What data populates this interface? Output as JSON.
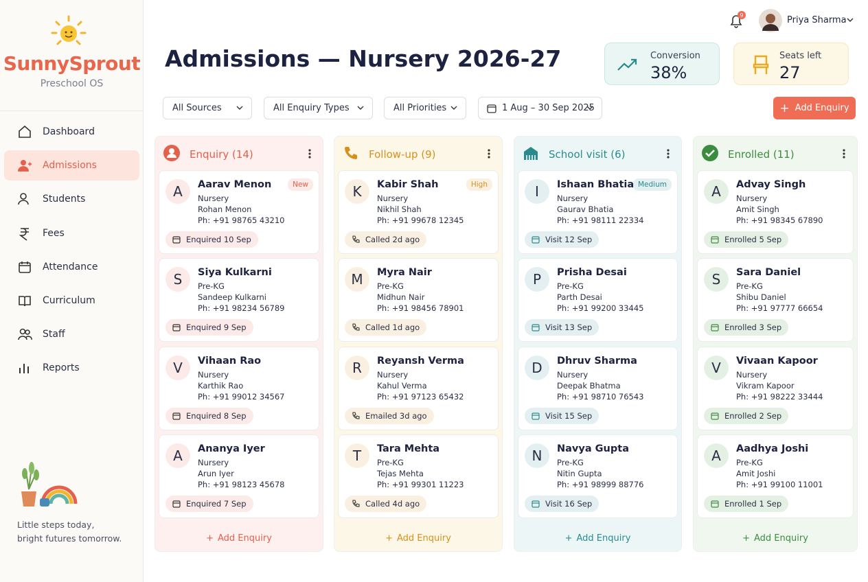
{
  "brand": {
    "name": "SunnySprout",
    "tagline": "Preschool OS"
  },
  "nav": [
    {
      "label": "Dashboard"
    },
    {
      "label": "Admissions",
      "active": true
    },
    {
      "label": "Students"
    },
    {
      "label": "Fees"
    },
    {
      "label": "Attendance"
    },
    {
      "label": "Curriculum"
    },
    {
      "label": "Staff"
    },
    {
      "label": "Reports"
    }
  ],
  "footer_note": [
    "Little steps today,",
    "bright futures tomorrow."
  ],
  "user": {
    "name": "Priya Sharma",
    "notifications": 9
  },
  "page_title": "Admissions — Nursery 2026-27",
  "stats": [
    {
      "label": "Conversion",
      "value": "38%"
    },
    {
      "label": "Seats left",
      "value": "27"
    }
  ],
  "filters": [
    "All Sources",
    "All Enquiry Types",
    "All Priorities",
    "1 Aug – 30 Sep 2025"
  ],
  "add_button": "Add Enquiry",
  "columns": [
    {
      "title": "Enquiry (14)",
      "color": "#e4604a",
      "bg": "#fdf0ee",
      "add": "Add Enquiry",
      "cards": [
        {
          "initial": "A",
          "name": "Aarav Menon",
          "badge": "New",
          "grade": "Nursery",
          "parent": "Rohan Menon",
          "phone": "Ph: +91 98765 43210",
          "status": "Enquired 10 Sep"
        },
        {
          "initial": "S",
          "name": "Siya Kulkarni",
          "grade": "Pre-KG",
          "parent": "Sandeep Kulkarni",
          "phone": "Ph: +91 98234 56789",
          "status": "Enquired 9 Sep"
        },
        {
          "initial": "V",
          "name": "Vihaan Rao",
          "grade": "Nursery",
          "parent": "Karthik Rao",
          "phone": "Ph: +91 99012 34567",
          "status": "Enquired 8 Sep"
        },
        {
          "initial": "A",
          "name": "Ananya Iyer",
          "grade": "Nursery",
          "parent": "Arun Iyer",
          "phone": "Ph: +91 98123 45678",
          "status": "Enquired 7 Sep"
        }
      ]
    },
    {
      "title": "Follow-up (9)",
      "color": "#d8901c",
      "bg": "#fdf7e8",
      "add": "Add Enquiry",
      "cards": [
        {
          "initial": "K",
          "name": "Kabir Shah",
          "badge": "High",
          "grade": "Nursery",
          "parent": "Nikhil Shah",
          "phone": "Ph: +91 99678 12345",
          "status": "Called 2d ago"
        },
        {
          "initial": "M",
          "name": "Myra Nair",
          "grade": "Pre-KG",
          "parent": "Midhun Nair",
          "phone": "Ph: +91 98456 78901",
          "status": "Called 1d ago"
        },
        {
          "initial": "R",
          "name": "Reyansh Verma",
          "grade": "Nursery",
          "parent": "Kahul Verma",
          "phone": "Ph: +91 97123 65432",
          "status": "Emailed 3d ago"
        },
        {
          "initial": "T",
          "name": "Tara Mehta",
          "grade": "Pre-KG",
          "parent": "Tejas Mehta",
          "phone": "Ph: +91 99301 11223",
          "status": "Called 4d ago"
        }
      ]
    },
    {
      "title": "School visit (6)",
      "color": "#2b8a8c",
      "bg": "#ecf6f6",
      "add": "Add Enquiry",
      "cards": [
        {
          "initial": "I",
          "name": "Ishaan Bhatia",
          "badge": "Medium",
          "grade": "Nursery",
          "parent": "Gaurav Bhatia",
          "phone": "Ph: +91 98111 22334",
          "status": "Visit 12 Sep"
        },
        {
          "initial": "P",
          "name": "Prisha Desai",
          "grade": "Pre-KG",
          "parent": "Parth Desai",
          "phone": "Ph: +91 99200 33445",
          "status": "Visit 13 Sep"
        },
        {
          "initial": "D",
          "name": "Dhruv Sharma",
          "grade": "Nursery",
          "parent": "Deepak Bhatma",
          "phone": "Ph: +91 98710 76543",
          "status": "Visit 15 Sep"
        },
        {
          "initial": "N",
          "name": "Navya Gupta",
          "grade": "Pre-KG",
          "parent": "Nitin Gupta",
          "phone": "Ph: +91 98999 88776",
          "status": "Visit 16 Sep"
        }
      ]
    },
    {
      "title": "Enrolled (11)",
      "color": "#3c8c3e",
      "bg": "#f0f7ee",
      "add": "Add Enquiry",
      "cards": [
        {
          "initial": "A",
          "name": "Advay Singh",
          "grade": "Nursery",
          "parent": "Amit Singh",
          "phone": "Ph: +91 98345 67890",
          "status": "Enrolled 5 Sep"
        },
        {
          "initial": "S",
          "name": "Sara Daniel",
          "grade": "Pre-KG",
          "parent": "Shibu Daniel",
          "phone": "Ph: +91 97777 66654",
          "status": "Enrolled 3 Sep"
        },
        {
          "initial": "V",
          "name": "Vivaan Kapoor",
          "grade": "Nursery",
          "parent": "Vikram Kapoor",
          "phone": "Ph: +91 98222 33444",
          "status": "Enrolled 2 Sep"
        },
        {
          "initial": "A",
          "name": "Aadhya Joshi",
          "grade": "Pre-KG",
          "parent": "Amit Joshi",
          "phone": "Ph: +91 99100 11001",
          "status": "Enrolled 1 Sep"
        }
      ]
    }
  ]
}
